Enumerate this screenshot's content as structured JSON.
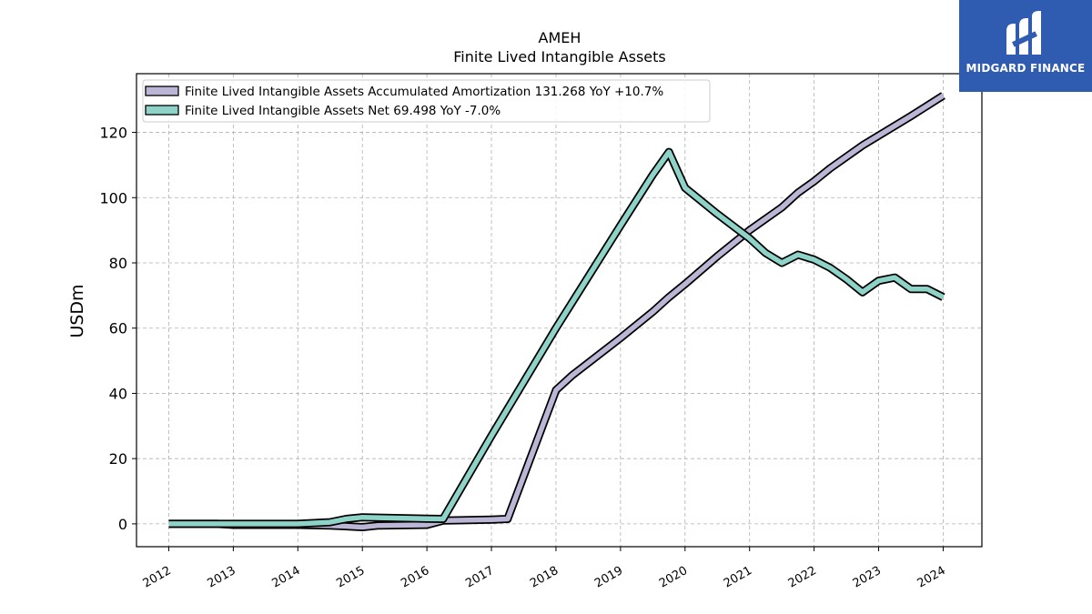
{
  "chart_data": {
    "type": "line",
    "title": "AMEH",
    "subtitle": "Finite Lived Intangible Assets",
    "ylabel": "USDm",
    "xlabel": "",
    "ylim": [
      -7,
      138
    ],
    "xlim": [
      2011.5,
      2024.6
    ],
    "yticks": [
      0,
      20,
      40,
      60,
      80,
      100,
      120
    ],
    "xticks": [
      "2012",
      "2013",
      "2014",
      "2015",
      "2016",
      "2017",
      "2018",
      "2019",
      "2020",
      "2021",
      "2022",
      "2023",
      "2024"
    ],
    "grid": true,
    "legend_position": "top-left",
    "series": [
      {
        "name": "Finite Lived Intangible Assets Accumulated Amortization",
        "legend_label": "Finite Lived Intangible Assets Accumulated Amortization  131.268 YoY +10.7%",
        "color": "#bcb6d6",
        "points": [
          [
            2012.0,
            0.0
          ],
          [
            2012.75,
            0.0
          ],
          [
            2013.0,
            -0.3
          ],
          [
            2013.5,
            -0.3
          ],
          [
            2014.0,
            -0.3
          ],
          [
            2014.5,
            -0.5
          ],
          [
            2015.0,
            -1.0
          ],
          [
            2015.25,
            -0.5
          ],
          [
            2016.0,
            -0.3
          ],
          [
            2016.25,
            1.0
          ],
          [
            2017.0,
            1.3
          ],
          [
            2017.25,
            1.5
          ],
          [
            2018.0,
            41.0
          ],
          [
            2018.25,
            45.5
          ],
          [
            2019.0,
            57.0
          ],
          [
            2019.5,
            65.0
          ],
          [
            2019.75,
            69.5
          ],
          [
            2020.0,
            73.5
          ],
          [
            2020.5,
            82.0
          ],
          [
            2021.0,
            90.0
          ],
          [
            2021.5,
            97.0
          ],
          [
            2021.75,
            101.5
          ],
          [
            2022.0,
            105.0
          ],
          [
            2022.25,
            109.0
          ],
          [
            2022.75,
            116.0
          ],
          [
            2023.0,
            119.0
          ],
          [
            2023.5,
            125.0
          ],
          [
            2024.0,
            131.268
          ]
        ]
      },
      {
        "name": "Finite Lived Intangible Assets Net",
        "legend_label": "Finite Lived Intangible Assets Net  69.498 YoY -7.0%",
        "color": "#8dd3c7",
        "points": [
          [
            2012.0,
            0.0
          ],
          [
            2012.75,
            0.0
          ],
          [
            2013.0,
            0.0
          ],
          [
            2013.5,
            0.0
          ],
          [
            2014.0,
            0.0
          ],
          [
            2014.5,
            0.5
          ],
          [
            2014.75,
            1.5
          ],
          [
            2015.0,
            2.0
          ],
          [
            2016.0,
            1.6
          ],
          [
            2016.25,
            1.5
          ],
          [
            2017.0,
            27.0
          ],
          [
            2018.0,
            60.0
          ],
          [
            2019.0,
            91.5
          ],
          [
            2019.5,
            107.0
          ],
          [
            2019.75,
            114.0
          ],
          [
            2020.0,
            103.0
          ],
          [
            2020.5,
            95.0
          ],
          [
            2021.0,
            87.5
          ],
          [
            2021.25,
            83.0
          ],
          [
            2021.5,
            80.0
          ],
          [
            2021.75,
            82.5
          ],
          [
            2022.0,
            81.0
          ],
          [
            2022.25,
            78.5
          ],
          [
            2022.5,
            75.0
          ],
          [
            2022.75,
            71.0
          ],
          [
            2023.0,
            74.5
          ],
          [
            2023.25,
            75.5
          ],
          [
            2023.5,
            72.0
          ],
          [
            2023.75,
            72.0
          ],
          [
            2024.0,
            69.498
          ]
        ]
      }
    ]
  },
  "logo": {
    "text": "MIDGARD FINANCE",
    "background": "#2f5bb0"
  }
}
